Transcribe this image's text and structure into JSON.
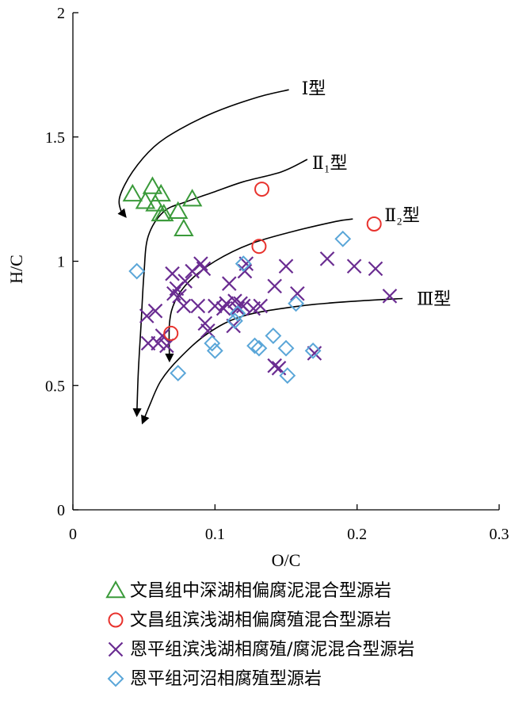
{
  "chart_data": {
    "type": "scatter",
    "xlabel": "O/C",
    "ylabel": "H/C",
    "xlim": [
      0,
      0.3
    ],
    "ylim": [
      0,
      2
    ],
    "xticks": [
      0,
      0.1,
      0.2,
      0.3
    ],
    "xtick_labels": [
      "0",
      "0.1",
      "0.2",
      "0.3"
    ],
    "yticks": [
      0,
      0.5,
      1,
      1.5,
      2
    ],
    "ytick_labels": [
      "0",
      "0.5",
      "1",
      "1.5",
      "2"
    ],
    "grid": false,
    "legend_position": "bottom",
    "series": [
      {
        "name": "文昌组中深湖相偏腐泥混合型源岩",
        "marker": "triangle",
        "color": "#3a9a3a",
        "points": [
          [
            0.042,
            1.27
          ],
          [
            0.051,
            1.24
          ],
          [
            0.056,
            1.3
          ],
          [
            0.058,
            1.23
          ],
          [
            0.062,
            1.27
          ],
          [
            0.062,
            1.19
          ],
          [
            0.064,
            1.19
          ],
          [
            0.074,
            1.2
          ],
          [
            0.078,
            1.13
          ],
          [
            0.084,
            1.25
          ]
        ]
      },
      {
        "name": "文昌组滨浅湖相偏腐殖混合型源岩",
        "marker": "circle",
        "color": "#e8322d",
        "points": [
          [
            0.069,
            0.71
          ],
          [
            0.131,
            1.06
          ],
          [
            0.133,
            1.29
          ],
          [
            0.212,
            1.15
          ]
        ]
      },
      {
        "name": "恩平组滨浅湖相腐殖/腐泥混合型源岩",
        "marker": "cross",
        "color": "#6a2c91",
        "points": [
          [
            0.052,
            0.78
          ],
          [
            0.053,
            0.67
          ],
          [
            0.058,
            0.8
          ],
          [
            0.06,
            0.67
          ],
          [
            0.063,
            0.7
          ],
          [
            0.066,
            0.66
          ],
          [
            0.07,
            0.95
          ],
          [
            0.071,
            0.87
          ],
          [
            0.073,
            0.89
          ],
          [
            0.075,
            0.86
          ],
          [
            0.078,
            0.82
          ],
          [
            0.079,
            0.92
          ],
          [
            0.084,
            0.96
          ],
          [
            0.088,
            0.82
          ],
          [
            0.09,
            0.99
          ],
          [
            0.092,
            0.97
          ],
          [
            0.093,
            0.75
          ],
          [
            0.095,
            0.72
          ],
          [
            0.1,
            0.82
          ],
          [
            0.106,
            0.81
          ],
          [
            0.108,
            0.83
          ],
          [
            0.11,
            0.91
          ],
          [
            0.113,
            0.74
          ],
          [
            0.114,
            0.84
          ],
          [
            0.116,
            0.81
          ],
          [
            0.118,
            0.83
          ],
          [
            0.12,
            0.82
          ],
          [
            0.121,
            0.96
          ],
          [
            0.122,
            0.99
          ],
          [
            0.127,
            0.81
          ],
          [
            0.132,
            0.82
          ],
          [
            0.142,
            0.9
          ],
          [
            0.142,
            0.58
          ],
          [
            0.145,
            0.57
          ],
          [
            0.15,
            0.98
          ],
          [
            0.158,
            0.87
          ],
          [
            0.17,
            0.63
          ],
          [
            0.179,
            1.01
          ],
          [
            0.198,
            0.98
          ],
          [
            0.213,
            0.97
          ],
          [
            0.223,
            0.86
          ]
        ]
      },
      {
        "name": "恩平组河沼相腐殖型源岩",
        "marker": "diamond",
        "color": "#5aa6d8",
        "points": [
          [
            0.045,
            0.96
          ],
          [
            0.074,
            0.55
          ],
          [
            0.098,
            0.67
          ],
          [
            0.1,
            0.64
          ],
          [
            0.114,
            0.76
          ],
          [
            0.116,
            0.79
          ],
          [
            0.12,
            0.99
          ],
          [
            0.128,
            0.66
          ],
          [
            0.131,
            0.65
          ],
          [
            0.141,
            0.7
          ],
          [
            0.15,
            0.65
          ],
          [
            0.151,
            0.54
          ],
          [
            0.157,
            0.83
          ],
          [
            0.169,
            0.64
          ],
          [
            0.19,
            1.09
          ]
        ]
      }
    ],
    "evolution_curves": [
      {
        "label": "Ⅰ型",
        "points": [
          [
            0.152,
            1.69
          ],
          [
            0.13,
            1.66
          ],
          [
            0.1,
            1.6
          ],
          [
            0.075,
            1.53
          ],
          [
            0.057,
            1.46
          ],
          [
            0.042,
            1.36
          ],
          [
            0.033,
            1.26
          ],
          [
            0.034,
            1.2
          ],
          [
            0.037,
            1.18
          ]
        ]
      },
      {
        "label": "Ⅱ₁型",
        "points": [
          [
            0.165,
            1.41
          ],
          [
            0.147,
            1.36
          ],
          [
            0.12,
            1.32
          ],
          [
            0.1,
            1.28
          ],
          [
            0.08,
            1.24
          ],
          [
            0.064,
            1.2
          ],
          [
            0.053,
            1.1
          ],
          [
            0.05,
            0.95
          ],
          [
            0.048,
            0.75
          ],
          [
            0.046,
            0.55
          ],
          [
            0.045,
            0.38
          ]
        ]
      },
      {
        "label": "Ⅱ₂型",
        "points": [
          [
            0.197,
            1.17
          ],
          [
            0.185,
            1.16
          ],
          [
            0.155,
            1.12
          ],
          [
            0.125,
            1.07
          ],
          [
            0.1,
            1.0
          ],
          [
            0.082,
            0.92
          ],
          [
            0.072,
            0.84
          ],
          [
            0.068,
            0.75
          ],
          [
            0.068,
            0.6
          ]
        ]
      },
      {
        "label": "Ⅲ型",
        "points": [
          [
            0.232,
            0.85
          ],
          [
            0.2,
            0.84
          ],
          [
            0.16,
            0.82
          ],
          [
            0.12,
            0.78
          ],
          [
            0.095,
            0.71
          ],
          [
            0.075,
            0.61
          ],
          [
            0.062,
            0.52
          ],
          [
            0.054,
            0.42
          ],
          [
            0.049,
            0.35
          ]
        ]
      }
    ]
  }
}
